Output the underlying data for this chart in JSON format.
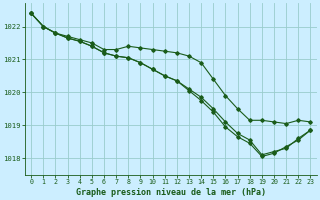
{
  "xlabel": "Graphe pression niveau de la mer (hPa)",
  "xlim": [
    -0.5,
    23.5
  ],
  "ylim": [
    1017.5,
    1022.7
  ],
  "yticks": [
    1018,
    1019,
    1020,
    1021,
    1022
  ],
  "xticks": [
    0,
    1,
    2,
    3,
    4,
    5,
    6,
    7,
    8,
    9,
    10,
    11,
    12,
    13,
    14,
    15,
    16,
    17,
    18,
    19,
    20,
    21,
    22,
    23
  ],
  "background_color": "#cceeff",
  "grid_color": "#99cccc",
  "line_color": "#1a5c1a",
  "series1": [
    1022.4,
    1022.0,
    1021.8,
    1021.7,
    1021.6,
    1021.5,
    1021.3,
    1021.3,
    1021.4,
    1021.35,
    1021.3,
    1021.25,
    1021.2,
    1021.1,
    1020.9,
    1020.4,
    1019.9,
    1019.5,
    1019.15,
    1019.15,
    1019.1,
    1019.05,
    1019.15,
    1019.1
  ],
  "series2": [
    1022.4,
    1022.0,
    1021.8,
    1021.65,
    1021.55,
    1021.4,
    1021.2,
    1021.1,
    1021.05,
    1020.9,
    1020.7,
    1020.5,
    1020.35,
    1020.1,
    1019.85,
    1019.5,
    1019.1,
    1018.75,
    1018.55,
    1018.1,
    1018.2,
    1018.3,
    1018.6,
    1018.85
  ],
  "series3": [
    1022.4,
    1022.0,
    1021.8,
    1021.65,
    1021.55,
    1021.4,
    1021.2,
    1021.1,
    1021.05,
    1020.9,
    1020.7,
    1020.5,
    1020.35,
    1020.05,
    1019.75,
    1019.4,
    1018.95,
    1018.65,
    1018.45,
    1018.05,
    1018.15,
    1018.35,
    1018.55,
    1018.85
  ]
}
